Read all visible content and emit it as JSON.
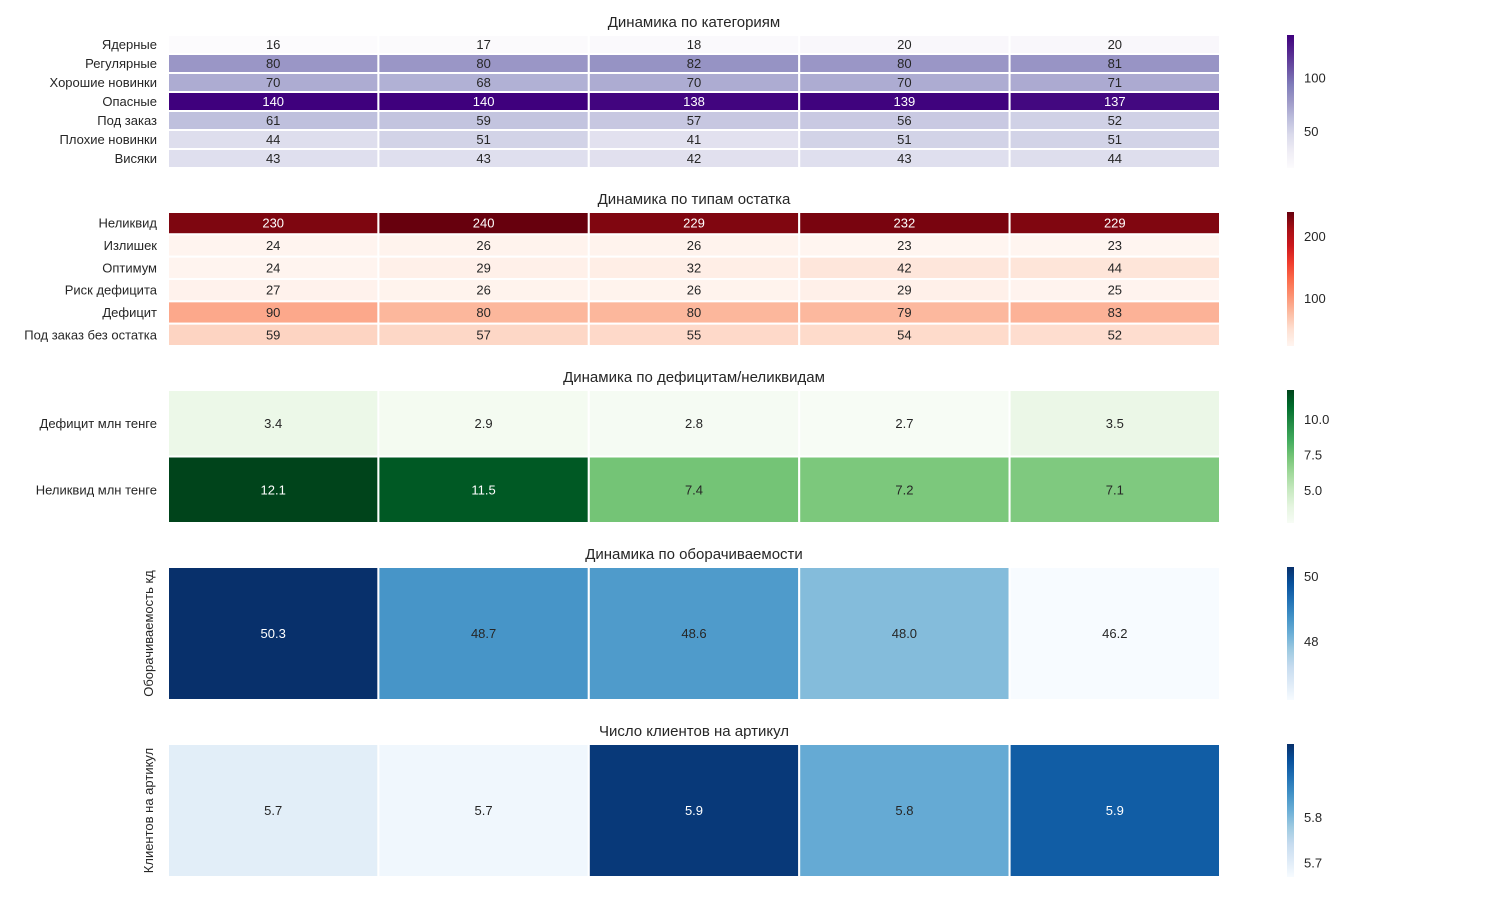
{
  "chart_data": [
    {
      "type": "heatmap",
      "title": "Динамика по категориям",
      "colormap": "Purples",
      "rows": [
        "Ядерные",
        "Регулярные",
        "Хорошие новинки",
        "Опасные",
        "Под заказ",
        "Плохие новинки",
        "Висяки"
      ],
      "values": [
        [
          16,
          17,
          18,
          20,
          20
        ],
        [
          80,
          80,
          82,
          80,
          81
        ],
        [
          70,
          68,
          70,
          70,
          71
        ],
        [
          140,
          140,
          138,
          139,
          137
        ],
        [
          61,
          59,
          57,
          56,
          52
        ],
        [
          44,
          51,
          41,
          51,
          51
        ],
        [
          43,
          43,
          42,
          43,
          44
        ]
      ],
      "labels": [
        [
          "16",
          "17",
          "18",
          "20",
          "20"
        ],
        [
          "80",
          "80",
          "82",
          "80",
          "81"
        ],
        [
          "70",
          "68",
          "70",
          "70",
          "71"
        ],
        [
          "140",
          "140",
          "138",
          "139",
          "137"
        ],
        [
          "61",
          "59",
          "57",
          "56",
          "52"
        ],
        [
          "44",
          "51",
          "41",
          "51",
          "51"
        ],
        [
          "43",
          "43",
          "42",
          "43",
          "44"
        ]
      ],
      "vmin": 16,
      "vmax": 140,
      "colorbar_ticks": [
        50,
        100
      ],
      "colorbar_labels": [
        "50",
        "100"
      ]
    },
    {
      "type": "heatmap",
      "title": "Динамика по типам остатка",
      "colormap": "Reds",
      "rows": [
        "Неликвид",
        "Излишек",
        "Оптимум",
        "Риск дефицита",
        "Дефицит",
        "Под заказ без остатка"
      ],
      "values": [
        [
          230,
          240,
          229,
          232,
          229
        ],
        [
          24,
          26,
          26,
          23,
          23
        ],
        [
          24,
          29,
          32,
          42,
          44
        ],
        [
          27,
          26,
          26,
          29,
          25
        ],
        [
          90,
          80,
          80,
          79,
          83
        ],
        [
          59,
          57,
          55,
          54,
          52
        ]
      ],
      "labels": [
        [
          "230",
          "240",
          "229",
          "232",
          "229"
        ],
        [
          "24",
          "26",
          "26",
          "23",
          "23"
        ],
        [
          "24",
          "29",
          "32",
          "42",
          "44"
        ],
        [
          "27",
          "26",
          "26",
          "29",
          "25"
        ],
        [
          "90",
          "80",
          "80",
          "79",
          "83"
        ],
        [
          "59",
          "57",
          "55",
          "54",
          "52"
        ]
      ],
      "vmin": 23,
      "vmax": 240,
      "colorbar_ticks": [
        100,
        200
      ],
      "colorbar_labels": [
        "100",
        "200"
      ]
    },
    {
      "type": "heatmap",
      "title": "Динамика по дефицитам/неликвидам",
      "colormap": "Greens",
      "rows": [
        "Дефицит млн тенге",
        "Неликвид млн тенге"
      ],
      "values": [
        [
          3.4,
          2.9,
          2.8,
          2.7,
          3.5
        ],
        [
          12.1,
          11.5,
          7.4,
          7.2,
          7.1
        ]
      ],
      "labels": [
        [
          "3.4",
          "2.9",
          "2.8",
          "2.7",
          "3.5"
        ],
        [
          "12.1",
          "11.5",
          "7.4",
          "7.2",
          "7.1"
        ]
      ],
      "vmin": 2.7,
      "vmax": 12.1,
      "colorbar_ticks": [
        5.0,
        7.5,
        10.0
      ],
      "colorbar_labels": [
        "5.0",
        "7.5",
        "10.0"
      ]
    },
    {
      "type": "heatmap",
      "title": "Динамика по оборачиваемости",
      "colormap": "Blues",
      "ylabel": "Оборачиваемость кд",
      "rows": [
        ""
      ],
      "values": [
        [
          50.3,
          48.7,
          48.6,
          48.0,
          46.2
        ]
      ],
      "labels": [
        [
          "50.3",
          "48.7",
          "48.6",
          "48.0",
          "46.2"
        ]
      ],
      "vmin": 46.2,
      "vmax": 50.3,
      "colorbar_ticks": [
        48,
        50
      ],
      "colorbar_labels": [
        "48",
        "50"
      ]
    },
    {
      "type": "heatmap",
      "title": "Число клиентов на артикул",
      "colormap": "Blues",
      "ylabel": "Клиентов на артикул",
      "rows": [
        ""
      ],
      "values": [
        [
          5.7,
          5.68,
          5.95,
          5.82,
          5.91
        ]
      ],
      "labels": [
        [
          "5.7",
          "5.7",
          "5.9",
          "5.8",
          "5.9"
        ]
      ],
      "vmin": 5.67,
      "vmax": 5.96,
      "colorbar_ticks": [
        5.7,
        5.8
      ],
      "colorbar_labels": [
        "5.7",
        "5.8"
      ]
    }
  ]
}
